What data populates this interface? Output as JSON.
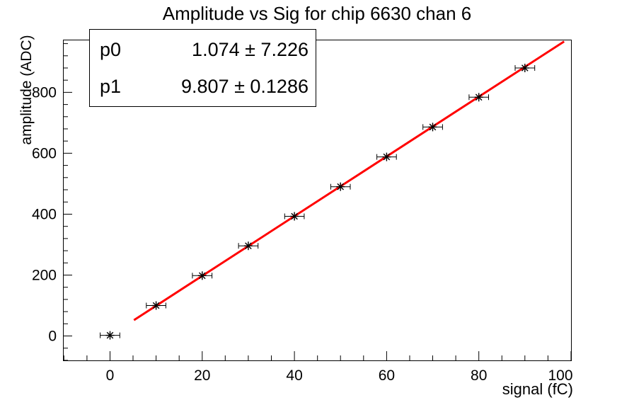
{
  "chart_data": {
    "type": "scatter",
    "title": "Amplitude vs Sig for chip 6630 chan 6",
    "xlabel": "signal (fC)",
    "ylabel": "amplitude (ADC)",
    "xlim": [
      -10.2,
      100
    ],
    "ylim": [
      -80.2,
      973
    ],
    "grid": false,
    "legend_position": "none",
    "x_ticks": {
      "major": [
        0,
        20,
        40,
        60,
        80,
        100
      ],
      "major_labels": [
        "0",
        "20",
        "40",
        "60",
        "80",
        "100"
      ],
      "minor_step": 5
    },
    "y_ticks": {
      "major": [
        0,
        200,
        400,
        600,
        800
      ],
      "major_labels": [
        "0",
        "200",
        "400",
        "600",
        "800"
      ],
      "minor_step": 40
    },
    "series": [
      {
        "name": "amplitude vs signal data",
        "marker": "star-with-x-error-bars",
        "color": "#000000",
        "x": [
          0,
          10,
          20,
          30,
          40,
          50,
          60,
          70,
          80,
          90
        ],
        "y": [
          2,
          100,
          198,
          296,
          393,
          490,
          588,
          686,
          784,
          880
        ],
        "xerr": 1.2
      }
    ],
    "fit": {
      "type": "linear",
      "p0": 1.074,
      "p1": 9.807,
      "x_start": 5.2,
      "x_end": 98.5,
      "color": "#ff0000",
      "line_width": 3
    }
  },
  "stats_box": {
    "rows": [
      {
        "param": "p0",
        "value": "1.074 ± 7.226"
      },
      {
        "param": "p1",
        "value": "9.807 ± 0.1286"
      }
    ]
  },
  "colors": {
    "background": "#ffffff",
    "axis": "#000000",
    "text": "#000000",
    "fit_line": "#ff0000"
  }
}
